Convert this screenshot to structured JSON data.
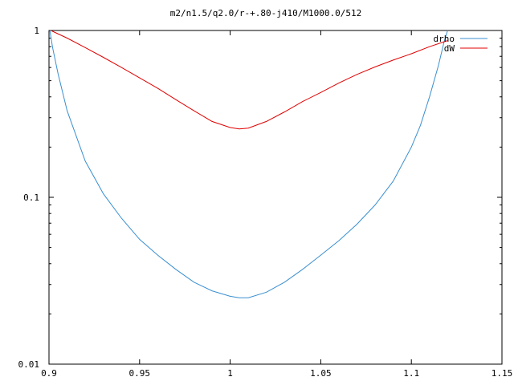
{
  "chart_data": {
    "type": "line",
    "title": "m2/n1.5/q2.0/r-+.80-j410/M1000.0/512",
    "xlabel": "",
    "ylabel": "",
    "xlim": [
      0.9,
      1.15
    ],
    "ylim": [
      0.01,
      1
    ],
    "y_scale": "log",
    "grid": false,
    "legend_position": "top-right",
    "x_ticks": [
      "0.9",
      "0.95",
      "1",
      "1.05",
      "1.1",
      "1.15"
    ],
    "y_ticks": [
      "0.01",
      "0.1",
      "1"
    ],
    "series": [
      {
        "name": "drho",
        "color": "#3a8fd0",
        "x": [
          0.9005,
          0.902,
          0.905,
          0.91,
          0.92,
          0.93,
          0.94,
          0.95,
          0.96,
          0.97,
          0.98,
          0.99,
          1.0,
          1.005,
          1.01,
          1.02,
          1.03,
          1.04,
          1.05,
          1.06,
          1.07,
          1.08,
          1.09,
          1.1,
          1.105,
          1.11,
          1.115,
          1.118,
          1.12
        ],
        "y": [
          1.0,
          0.79,
          0.55,
          0.33,
          0.165,
          0.105,
          0.075,
          0.056,
          0.045,
          0.037,
          0.031,
          0.0275,
          0.0255,
          0.025,
          0.025,
          0.027,
          0.031,
          0.037,
          0.045,
          0.055,
          0.069,
          0.09,
          0.125,
          0.2,
          0.27,
          0.4,
          0.62,
          0.85,
          1.0
        ]
      },
      {
        "name": "dW",
        "color": "#e00000",
        "x": [
          0.901,
          0.91,
          0.92,
          0.93,
          0.94,
          0.95,
          0.96,
          0.97,
          0.98,
          0.99,
          1.0,
          1.005,
          1.01,
          1.02,
          1.03,
          1.04,
          1.05,
          1.06,
          1.07,
          1.08,
          1.09,
          1.1,
          1.11,
          1.12
        ],
        "y": [
          1.0,
          0.9,
          0.79,
          0.69,
          0.6,
          0.52,
          0.45,
          0.385,
          0.33,
          0.285,
          0.262,
          0.257,
          0.26,
          0.285,
          0.325,
          0.375,
          0.425,
          0.485,
          0.545,
          0.605,
          0.665,
          0.725,
          0.8,
          0.87
        ]
      }
    ]
  }
}
